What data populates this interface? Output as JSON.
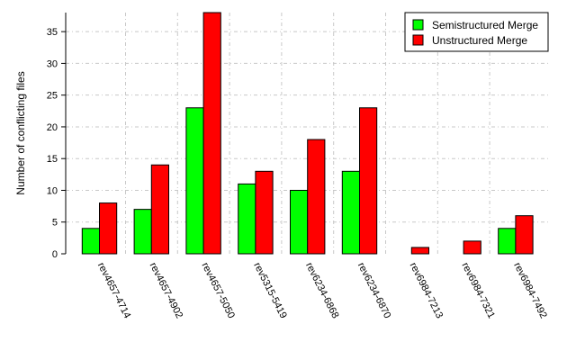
{
  "chart_data": {
    "type": "bar",
    "categories": [
      "rev4657-4714",
      "rev4657-4902",
      "rev4657-5050",
      "rev5315-5419",
      "rev6234-6868",
      "rev6234-6870",
      "rev6984-7213",
      "rev6984-7321",
      "rev6984-7492"
    ],
    "series": [
      {
        "name": "Semistructured Merge",
        "color": "#00ff00",
        "values": [
          4,
          7,
          23,
          11,
          10,
          13,
          0,
          0,
          4
        ]
      },
      {
        "name": "Unstructured Merge",
        "color": "#ff0000",
        "values": [
          8,
          14,
          38,
          13,
          18,
          23,
          1,
          2,
          6
        ]
      }
    ],
    "title": "",
    "xlabel": "",
    "ylabel": "Number of conflicting files",
    "ylim": [
      0,
      38
    ],
    "yticks": [
      0,
      5,
      10,
      15,
      20,
      25,
      30,
      35
    ],
    "grid": true,
    "legend_position": "top-right"
  }
}
